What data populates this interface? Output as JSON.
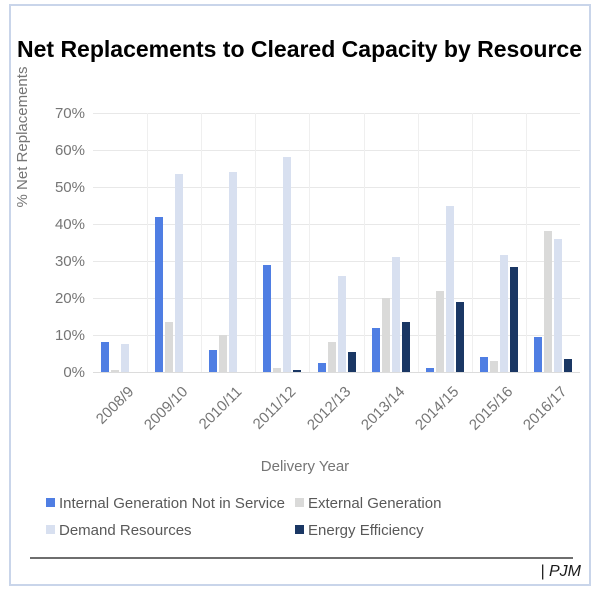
{
  "title": "Net Replacements to Cleared Capacity by Resource",
  "footer": {
    "brand": "| PJM"
  },
  "colors": {
    "frame_border": "#c9d5ea",
    "gridline": "#e8e8e8",
    "axis_text": "#757575",
    "legend_text": "#595959",
    "title_text": "#000000"
  },
  "chart_data": {
    "type": "bar",
    "title": "Net Replacements to Cleared Capacity by Resource",
    "xlabel": "Delivery Year",
    "ylabel": "% Net Replacements",
    "ylim": [
      0,
      70
    ],
    "ytick_step": 10,
    "ytick_suffix": "%",
    "grid": true,
    "legend_position": "bottom",
    "categories": [
      "2008/9",
      "2009/10",
      "2010/11",
      "2011/12",
      "2012/13",
      "2013/14",
      "2014/15",
      "2015/16",
      "2016/17"
    ],
    "series": [
      {
        "name": "Internal Generation Not in Service",
        "color": "#4f7ee3",
        "values": [
          8,
          42,
          6,
          29,
          2.5,
          12,
          1,
          4,
          9.5
        ]
      },
      {
        "name": "External Generation",
        "color": "#dadad9",
        "values": [
          0.5,
          13.5,
          10,
          1,
          8,
          20,
          22,
          3,
          38
        ]
      },
      {
        "name": "Demand Resources",
        "color": "#d8e0f0",
        "values": [
          7.5,
          53.5,
          54,
          58,
          26,
          31,
          45,
          31.5,
          36
        ]
      },
      {
        "name": "Energy Efficiency",
        "color": "#1a3764",
        "values": [
          0,
          0,
          0,
          0.5,
          5.5,
          13.5,
          19,
          28.5,
          3.5
        ]
      }
    ]
  }
}
